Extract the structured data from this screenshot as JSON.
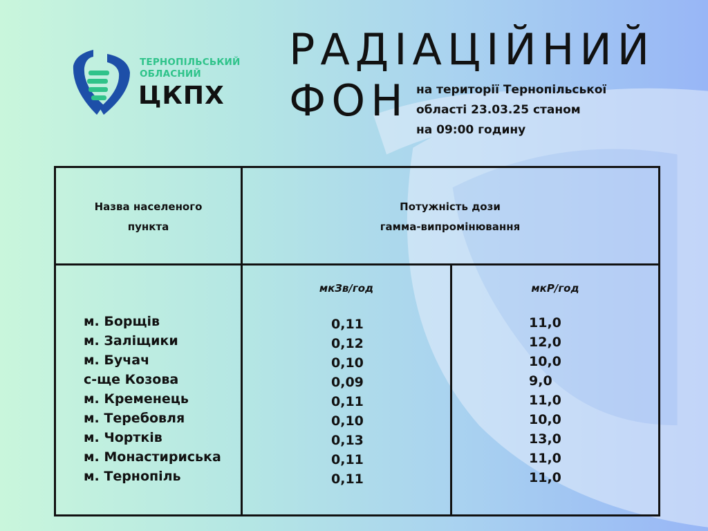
{
  "logo": {
    "line1": "ТЕРНОПІЛЬСЬКИЙ",
    "line2": "ОБЛАСНИЙ",
    "name": "ЦКПХ"
  },
  "title": {
    "line1": "РАДІАЦІЙНИЙ",
    "line2": "ФОН"
  },
  "subtitle": {
    "line1": "на території Тернопільської",
    "line2": "області 23.03.25 станом",
    "line3": "на 09:00 годину"
  },
  "table": {
    "header_name": [
      "Назва населеного",
      "пункта"
    ],
    "header_dose": [
      "Потужність дози",
      "гамма-випромінювання"
    ],
    "unit1": "мкЗв/год",
    "unit2": "мкР/год",
    "rows": [
      {
        "name": "м. Борщів",
        "v1": "0,11",
        "v2": "11,0"
      },
      {
        "name": "м. Заліщики",
        "v1": "0,12",
        "v2": "12,0"
      },
      {
        "name": "м. Бучач",
        "v1": "0,10",
        "v2": "10,0"
      },
      {
        "name": "с-ще Козова",
        "v1": "0,09",
        "v2": "9,0"
      },
      {
        "name": "м. Кременець",
        "v1": "0,11",
        "v2": "11,0"
      },
      {
        "name": "м. Теребовля",
        "v1": "0,10",
        "v2": "10,0"
      },
      {
        "name": "м. Чортків",
        "v1": "0,13",
        "v2": "13,0"
      },
      {
        "name": "м. Монастириська",
        "v1": "0,11",
        "v2": "11,0"
      },
      {
        "name": "м. Тернопіль",
        "v1": "0,11",
        "v2": "11,0"
      }
    ]
  }
}
